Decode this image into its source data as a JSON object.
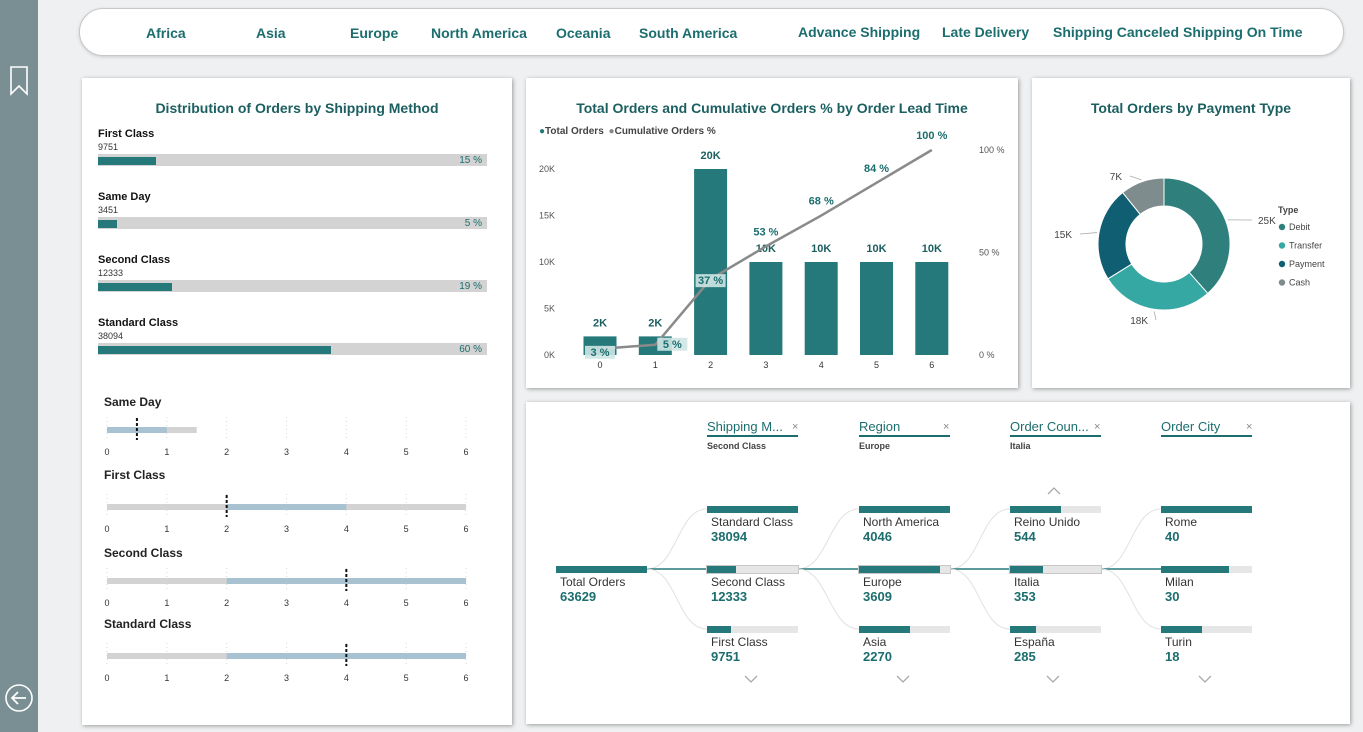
{
  "nav": {
    "regions": [
      "Africa",
      "Asia",
      "Europe",
      "North America",
      "Oceania",
      "South America"
    ],
    "statuses": [
      "Advance Shipping",
      "Late Delivery",
      "Shipping Canceled",
      "Shipping On Time"
    ]
  },
  "colors": {
    "teal": "#26797a",
    "dark_teal": "#0f5e72",
    "light_teal": "#35a8a3",
    "gray": "#7f8c8d",
    "bullet_blue": "#a9c2d1"
  },
  "shipping_panel": {
    "title": "Distribution of Orders by Shipping Method",
    "methods": [
      {
        "name": "First Class",
        "count": "9751",
        "pct_label": "15 %",
        "pct": 15
      },
      {
        "name": "Same Day",
        "count": "3451",
        "pct_label": "5 %",
        "pct": 5
      },
      {
        "name": "Second Class",
        "count": "12333",
        "pct_label": "19 %",
        "pct": 19
      },
      {
        "name": "Standard Class",
        "count": "38094",
        "pct_label": "60 %",
        "pct": 60
      }
    ],
    "bullets": {
      "axis_ticks": [
        "0",
        "1",
        "2",
        "3",
        "4",
        "5",
        "6"
      ],
      "rows": [
        {
          "name": "Same Day",
          "gray_to": 1.5,
          "blue_from": 0,
          "blue_to": 1,
          "target": 0.5
        },
        {
          "name": "First Class",
          "gray_to": 6,
          "blue_from": 2,
          "blue_to": 4,
          "target": 2
        },
        {
          "name": "Second Class",
          "gray_to": 6,
          "blue_from": 2,
          "blue_to": 6,
          "target": 4
        },
        {
          "name": "Standard Class",
          "gray_to": 6,
          "blue_from": 2,
          "blue_to": 6,
          "target": 4
        }
      ]
    }
  },
  "lead_chart": {
    "title": "Total Orders and Cumulative Orders % by Order Lead Time",
    "legend": [
      "Total Orders",
      "Cumulative Orders %"
    ]
  },
  "payment_chart": {
    "title": "Total Orders by Payment Type",
    "legend_title": "Type"
  },
  "chart_data": [
    {
      "type": "bar",
      "title": "Total Orders and Cumulative Orders % by Order Lead Time",
      "categories": [
        "0",
        "1",
        "2",
        "3",
        "4",
        "5",
        "6"
      ],
      "series": [
        {
          "name": "Total Orders",
          "values": [
            2000,
            2000,
            20000,
            10000,
            10000,
            10000,
            10000
          ],
          "labels": [
            "2K",
            "2K",
            "20K",
            "10K",
            "10K",
            "10K",
            "10K"
          ]
        },
        {
          "name": "Cumulative Orders %",
          "values": [
            3,
            5,
            37,
            53,
            68,
            84,
            100
          ],
          "labels": [
            "3 %",
            "5 %",
            "37 %",
            "53 %",
            "68 %",
            "84 %",
            "100 %"
          ]
        }
      ],
      "ylim": [
        0,
        20000
      ],
      "y_ticks": [
        "0K",
        "5K",
        "10K",
        "15K",
        "20K"
      ],
      "y2lim": [
        0,
        100
      ],
      "y2_ticks": [
        "0 %",
        "50 %",
        "100 %"
      ]
    },
    {
      "type": "pie",
      "title": "Total Orders by Payment Type",
      "legend_title": "Type",
      "series": [
        {
          "name": "Debit",
          "value": 25,
          "label": "25K",
          "color": "#2f7f7d"
        },
        {
          "name": "Transfer",
          "value": 18,
          "label": "18K",
          "color": "#35a8a3"
        },
        {
          "name": "Payment",
          "value": 15,
          "label": "15K",
          "color": "#0f5e72"
        },
        {
          "name": "Cash",
          "value": 7,
          "label": "7K",
          "color": "#7f8c8d"
        }
      ]
    }
  ],
  "decomp": {
    "root": {
      "label": "Total Orders",
      "value": "63629"
    },
    "levels": [
      {
        "header": "Shipping M...",
        "selected": "Second Class",
        "nodes": [
          {
            "label": "Standard Class",
            "value": "38094",
            "ratio": 1.0
          },
          {
            "label": "Second Class",
            "value": "12333",
            "ratio": 0.32
          },
          {
            "label": "First Class",
            "value": "9751",
            "ratio": 0.26
          }
        ]
      },
      {
        "header": "Region",
        "selected": "Europe",
        "nodes": [
          {
            "label": "North America",
            "value": "4046",
            "ratio": 1.0
          },
          {
            "label": "Europe",
            "value": "3609",
            "ratio": 0.89
          },
          {
            "label": "Asia",
            "value": "2270",
            "ratio": 0.56
          }
        ]
      },
      {
        "header": "Order Coun...",
        "selected": "Italia",
        "nodes": [
          {
            "label": "Reino Unido",
            "value": "544",
            "ratio": 0.56
          },
          {
            "label": "Italia",
            "value": "353",
            "ratio": 0.36
          },
          {
            "label": "España",
            "value": "285",
            "ratio": 0.29
          }
        ]
      },
      {
        "header": "Order City",
        "selected": "",
        "nodes": [
          {
            "label": "Rome",
            "value": "40",
            "ratio": 1.0
          },
          {
            "label": "Milan",
            "value": "30",
            "ratio": 0.75
          },
          {
            "label": "Turin",
            "value": "18",
            "ratio": 0.45
          }
        ]
      }
    ]
  }
}
